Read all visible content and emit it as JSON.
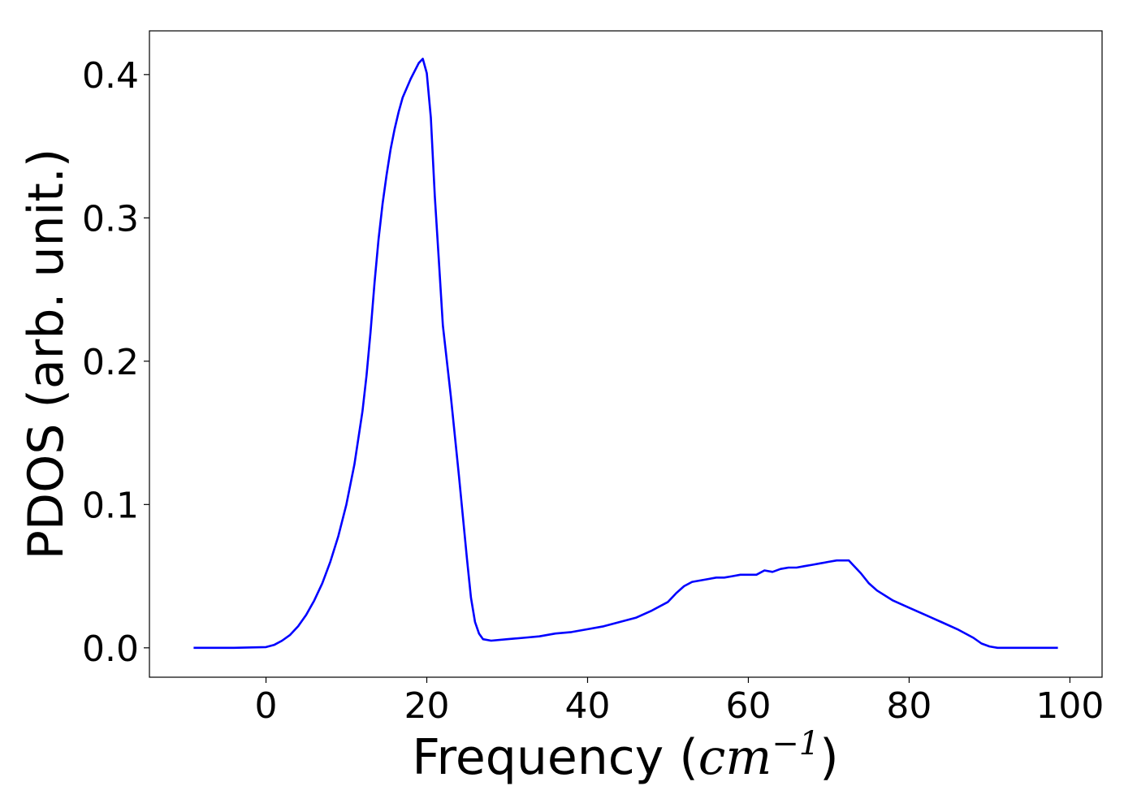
{
  "chart_data": {
    "type": "line",
    "title": "",
    "xlabel_prefix": "Frequency (",
    "xlabel_unit": "cm",
    "xlabel_exponent": "−1",
    "xlabel_suffix": ")",
    "ylabel": "PDOS (arb. unit.)",
    "xlim": [
      -14.5,
      104
    ],
    "ylim": [
      -0.0205,
      0.4305
    ],
    "xticks": [
      0,
      20,
      40,
      60,
      80,
      100
    ],
    "xtick_labels": [
      "0",
      "20",
      "40",
      "60",
      "80",
      "100"
    ],
    "yticks": [
      0.0,
      0.1,
      0.2,
      0.3,
      0.4
    ],
    "ytick_labels": [
      "0.0",
      "0.1",
      "0.2",
      "0.3",
      "0.4"
    ],
    "grid": false,
    "series": [
      {
        "color": "#0000ff",
        "x": [
          -9,
          -4,
          0,
          1,
          2,
          3,
          4,
          5,
          6,
          7,
          8,
          9,
          10,
          11,
          12,
          12.5,
          13,
          13.5,
          14,
          14.5,
          15,
          15.5,
          16,
          16.5,
          17,
          18,
          19,
          19.5,
          20,
          20.5,
          21,
          21.5,
          22,
          23,
          24,
          25,
          25.5,
          26,
          26.5,
          27,
          28,
          30,
          32,
          34,
          36,
          38,
          40,
          42,
          44,
          46,
          48,
          50,
          51,
          52,
          53,
          54,
          55,
          56,
          57,
          58,
          59,
          60,
          61,
          62,
          63,
          64,
          65,
          66,
          67,
          68,
          69,
          70,
          71,
          72,
          72.5,
          73,
          74,
          75,
          76,
          78,
          80,
          82,
          84,
          86,
          88,
          89,
          90,
          91,
          93,
          98.5
        ],
        "y": [
          0.0,
          0.0,
          0.0005,
          0.002,
          0.005,
          0.009,
          0.015,
          0.023,
          0.033,
          0.045,
          0.06,
          0.078,
          0.1,
          0.128,
          0.165,
          0.19,
          0.22,
          0.255,
          0.285,
          0.31,
          0.33,
          0.348,
          0.362,
          0.374,
          0.384,
          0.397,
          0.408,
          0.411,
          0.401,
          0.37,
          0.315,
          0.27,
          0.225,
          0.175,
          0.12,
          0.062,
          0.035,
          0.018,
          0.01,
          0.006,
          0.005,
          0.006,
          0.007,
          0.008,
          0.01,
          0.011,
          0.013,
          0.015,
          0.018,
          0.021,
          0.026,
          0.032,
          0.038,
          0.043,
          0.046,
          0.047,
          0.048,
          0.049,
          0.049,
          0.05,
          0.051,
          0.051,
          0.051,
          0.054,
          0.053,
          0.055,
          0.056,
          0.056,
          0.057,
          0.058,
          0.059,
          0.06,
          0.061,
          0.061,
          0.061,
          0.058,
          0.052,
          0.045,
          0.04,
          0.033,
          0.028,
          0.023,
          0.018,
          0.013,
          0.007,
          0.003,
          0.001,
          0.0,
          0.0,
          0.0
        ]
      }
    ]
  }
}
